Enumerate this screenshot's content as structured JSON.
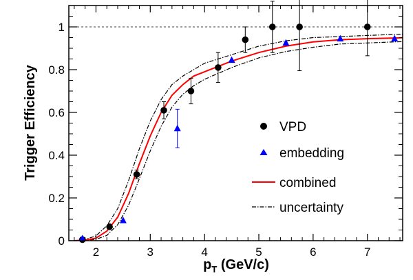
{
  "chart_data": {
    "type": "scatter",
    "title": "",
    "xlabel": {
      "main": "p",
      "sub": "T",
      "rest": " (GeV/c)"
    },
    "ylabel": "Trigger Efficiency",
    "xlim": [
      1.5,
      7.65
    ],
    "ylim": [
      0,
      1.1
    ],
    "x_ticks": [
      2,
      3,
      4,
      5,
      6,
      7
    ],
    "y_ticks": [
      0,
      0.2,
      0.4,
      0.6,
      0.8,
      1
    ],
    "y_tick_labels": [
      "0",
      "0.2",
      "0.4",
      "0.6",
      "0.8",
      "1"
    ],
    "reference_line": {
      "y": 1,
      "style": "dashed"
    },
    "legend_position": "center-right",
    "series": [
      {
        "name": "VPD",
        "kind": "points",
        "marker": "circle",
        "color": "#000000",
        "x": [
          1.75,
          2.25,
          2.75,
          3.25,
          3.75,
          4.25,
          4.75,
          5.25,
          5.75,
          7.0
        ],
        "y": [
          0.005,
          0.065,
          0.31,
          0.61,
          0.7,
          0.81,
          0.94,
          1.0,
          1.0,
          1.0
        ],
        "err": [
          0.005,
          0.01,
          0.02,
          0.04,
          0.06,
          0.07,
          0.06,
          0.12,
          0.205,
          0.135
        ]
      },
      {
        "name": "embedding",
        "kind": "points",
        "marker": "triangle",
        "color": "#0000ff",
        "x": [
          1.75,
          2.5,
          3.5,
          4.5,
          5.5,
          6.5,
          7.5
        ],
        "y": [
          0.01,
          0.095,
          0.525,
          0.845,
          0.925,
          0.945,
          0.945
        ],
        "err": [
          0,
          0,
          0.09,
          0,
          0,
          0,
          0
        ]
      },
      {
        "name": "combined",
        "kind": "line",
        "color": "#ff0000",
        "x": [
          1.6,
          1.8,
          2.0,
          2.2,
          2.4,
          2.6,
          2.8,
          3.0,
          3.2,
          3.4,
          3.6,
          3.8,
          4.0,
          4.5,
          5.0,
          5.5,
          6.0,
          6.5,
          7.0,
          7.5,
          7.65
        ],
        "y": [
          0.0,
          0.003,
          0.012,
          0.045,
          0.11,
          0.22,
          0.36,
          0.49,
          0.6,
          0.68,
          0.73,
          0.77,
          0.79,
          0.84,
          0.88,
          0.91,
          0.93,
          0.94,
          0.945,
          0.948,
          0.949
        ]
      },
      {
        "name": "uncertainty",
        "kind": "band",
        "color": "#000000",
        "x": [
          1.6,
          1.8,
          2.0,
          2.2,
          2.4,
          2.6,
          2.8,
          3.0,
          3.2,
          3.4,
          3.6,
          3.8,
          4.0,
          4.5,
          5.0,
          5.5,
          6.0,
          6.5,
          7.0,
          7.5,
          7.65
        ],
        "upper": [
          0.0,
          0.006,
          0.022,
          0.07,
          0.15,
          0.28,
          0.43,
          0.56,
          0.66,
          0.73,
          0.77,
          0.8,
          0.83,
          0.87,
          0.91,
          0.935,
          0.95,
          0.955,
          0.96,
          0.965,
          0.966
        ],
        "lower": [
          0.0,
          0.001,
          0.006,
          0.025,
          0.075,
          0.165,
          0.29,
          0.42,
          0.535,
          0.625,
          0.685,
          0.725,
          0.755,
          0.81,
          0.855,
          0.885,
          0.905,
          0.92,
          0.925,
          0.93,
          0.931
        ]
      }
    ]
  }
}
